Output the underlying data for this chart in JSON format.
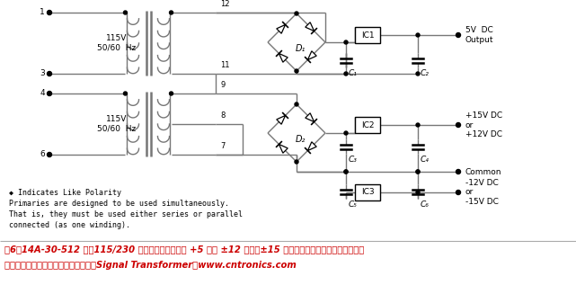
{
  "bg_color": "#ffffff",
  "wire_color": "#777777",
  "text_color": "#000000",
  "caption_color": "#cc0000",
  "note_line1": "◆ Indicates Like Polarity",
  "note_line2": "Primaries are designed to be used simultaneously.",
  "note_line3": "That is, they must be used either series or parallel",
  "note_line4": "connected (as one winding).",
  "caption_line1": "图6：14A-30-512 采用115/230 伏输入电压，适用于 +5 伏或 ±12 伏直流±15 伏直流电源，具体取决于用户如何",
  "caption_line2": "连接初级和次级处维组。（图片来源：Signal Transformer）www.cntronics.com"
}
